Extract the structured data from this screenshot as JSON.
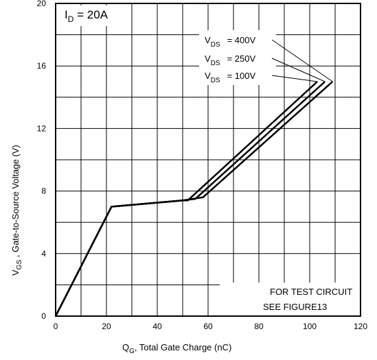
{
  "chart_data": {
    "type": "line",
    "xlabel_main": "Q",
    "xlabel_sub": "G",
    "xlabel_rest": ", Total Gate Charge (nC)",
    "ylabel_main": "V",
    "ylabel_sub": "GS",
    "ylabel_rest": " , Gate-to-Source Voltage (V)",
    "xlim": [
      0,
      120
    ],
    "ylim": [
      0,
      20
    ],
    "x_ticks": [
      "0",
      "20",
      "40",
      "60",
      "80",
      "100",
      "120"
    ],
    "y_ticks": [
      "0",
      "4",
      "8",
      "12",
      "16",
      "20"
    ],
    "grid": true,
    "annotation_id": {
      "main": "I",
      "sub": "D",
      "rest": " = 20A"
    },
    "note_line1": "FOR TEST CIRCUIT",
    "note_line2": "SEE FIGURE13",
    "series": [
      {
        "name": "400V",
        "label_main": "V",
        "label_sub": "DS",
        "label_rest": "=  400V",
        "x": [
          0,
          22,
          50,
          58,
          109
        ],
        "y": [
          0,
          7.0,
          7.4,
          7.6,
          15.0
        ]
      },
      {
        "name": "250V",
        "label_main": "V",
        "label_sub": "DS",
        "label_rest": "=  250V",
        "x": [
          0,
          22,
          50,
          55,
          106
        ],
        "y": [
          0,
          7.0,
          7.4,
          7.5,
          15.0
        ]
      },
      {
        "name": "100V",
        "label_main": "V",
        "label_sub": "DS",
        "label_rest": "=  100V",
        "x": [
          0,
          22,
          50,
          52,
          103
        ],
        "y": [
          0,
          7.0,
          7.4,
          7.4,
          15.0
        ]
      }
    ]
  }
}
